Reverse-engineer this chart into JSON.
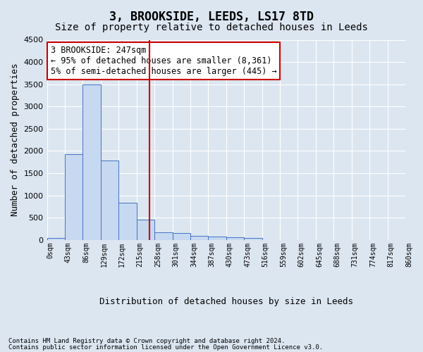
{
  "title": "3, BROOKSIDE, LEEDS, LS17 8TD",
  "subtitle": "Size of property relative to detached houses in Leeds",
  "xlabel": "Distribution of detached houses by size in Leeds",
  "ylabel": "Number of detached properties",
  "bin_labels": [
    "0sqm",
    "43sqm",
    "86sqm",
    "129sqm",
    "172sqm",
    "215sqm",
    "258sqm",
    "301sqm",
    "344sqm",
    "387sqm",
    "430sqm",
    "473sqm",
    "516sqm",
    "559sqm",
    "602sqm",
    "645sqm",
    "688sqm",
    "731sqm",
    "774sqm",
    "817sqm",
    "860sqm"
  ],
  "bar_values": [
    50,
    1920,
    3500,
    1790,
    840,
    460,
    165,
    150,
    95,
    80,
    60,
    45,
    0,
    0,
    0,
    0,
    0,
    0,
    0,
    0
  ],
  "bar_color": "#c6d9f0",
  "bar_edge_color": "#4472c4",
  "vline_x": 5.73,
  "vline_color": "#cc0000",
  "ylim": [
    0,
    4500
  ],
  "yticks": [
    0,
    500,
    1000,
    1500,
    2000,
    2500,
    3000,
    3500,
    4000,
    4500
  ],
  "annotation_text": "3 BROOKSIDE: 247sqm\n← 95% of detached houses are smaller (8,361)\n5% of semi-detached houses are larger (445) →",
  "annotation_box_color": "#ffffff",
  "annotation_box_edge": "#cc0000",
  "footer_line1": "Contains HM Land Registry data © Crown copyright and database right 2024.",
  "footer_line2": "Contains public sector information licensed under the Open Government Licence v3.0.",
  "background_color": "#dce6f1",
  "plot_bg_color": "#dce6f1",
  "grid_color": "#ffffff",
  "title_fontsize": 12,
  "subtitle_fontsize": 10
}
